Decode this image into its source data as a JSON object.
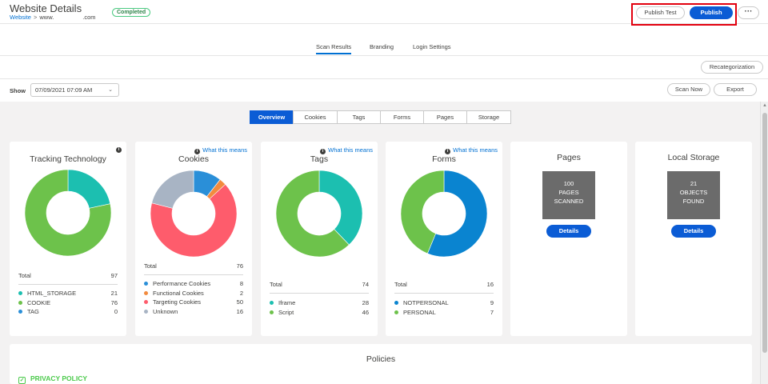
{
  "header": {
    "title": "Website Details",
    "breadcrumb_link": "Website",
    "breadcrumb_sep": ">",
    "site_prefix": "www.",
    "site_suffix": ".com",
    "status_badge": "Completed",
    "publish_test_label": "Publish Test",
    "publish_label": "Publish",
    "more_label": "···"
  },
  "tabs": [
    "Scan Results",
    "Branding",
    "Login Settings"
  ],
  "recategorization_label": "Recategorization",
  "show_label": "Show",
  "scan_date": "07/09/2021 07:09 AM",
  "scan_now_label": "Scan Now",
  "export_label": "Export",
  "segments": [
    "Overview",
    "Cookies",
    "Tags",
    "Forms",
    "Pages",
    "Storage"
  ],
  "what_this_means": "What this means",
  "total_label": "Total",
  "colors": {
    "teal": "#1cbfb0",
    "green": "#6dc24b",
    "blue": "#2a8fd8",
    "orange": "#f28b3e",
    "red": "#fe5c6c",
    "gray": "#a8b4c4",
    "dark_blue": "#0a84d0"
  },
  "cards": {
    "tracking": {
      "title": "Tracking Technology",
      "total": "97",
      "legend": [
        {
          "label": "HTML_STORAGE",
          "value": "21",
          "color": "#1cbfb0"
        },
        {
          "label": "COOKIE",
          "value": "76",
          "color": "#6dc24b"
        },
        {
          "label": "TAG",
          "value": "0",
          "color": "#2a8fd8"
        }
      ]
    },
    "cookies": {
      "title": "Cookies",
      "total": "76",
      "legend": [
        {
          "label": "Performance Cookies",
          "value": "8",
          "color": "#2a8fd8"
        },
        {
          "label": "Functional Cookies",
          "value": "2",
          "color": "#f28b3e"
        },
        {
          "label": "Targeting Cookies",
          "value": "50",
          "color": "#fe5c6c"
        },
        {
          "label": "Unknown",
          "value": "16",
          "color": "#a8b4c4"
        }
      ]
    },
    "tags": {
      "title": "Tags",
      "total": "74",
      "legend": [
        {
          "label": "Iframe",
          "value": "28",
          "color": "#1cbfb0"
        },
        {
          "label": "Script",
          "value": "46",
          "color": "#6dc24b"
        }
      ]
    },
    "forms": {
      "title": "Forms",
      "total": "16",
      "legend": [
        {
          "label": "NOTPERSONAL",
          "value": "9",
          "color": "#0a84d0"
        },
        {
          "label": "PERSONAL",
          "value": "7",
          "color": "#6dc24b"
        }
      ]
    },
    "pages": {
      "title": "Pages",
      "tile_lines": [
        "100",
        "PAGES",
        "SCANNED"
      ],
      "details_label": "Details"
    },
    "storage": {
      "title": "Local Storage",
      "tile_lines": [
        "21",
        "OBJECTS",
        "FOUND"
      ],
      "details_label": "Details"
    }
  },
  "policies": {
    "title": "Policies",
    "items": [
      "PRIVACY POLICY"
    ]
  }
}
